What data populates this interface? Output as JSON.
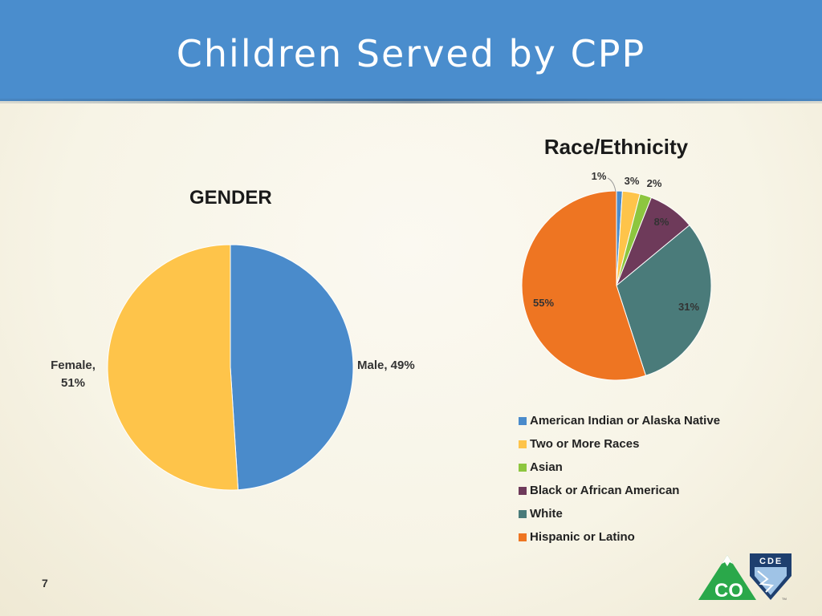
{
  "slide": {
    "title": "Children Served by CPP",
    "page_number": "7"
  },
  "logo": {
    "text_top": "CDE",
    "text_main": "CO",
    "tm": "TM",
    "colors": {
      "green": "#2aa84a",
      "navy": "#1e3f6f"
    }
  },
  "chart_data": [
    {
      "type": "pie",
      "title": "GENDER",
      "slices": [
        {
          "label": "Male",
          "value": 49,
          "display": "Male, 49%",
          "color": "#4a8bcb"
        },
        {
          "label": "Female",
          "value": 51,
          "display_line1": "Female,",
          "display_line2": "51%",
          "color": "#fec44a"
        }
      ],
      "start": "12 o'clock",
      "direction": "clockwise"
    },
    {
      "type": "pie",
      "title": "Race/Ethnicity",
      "slices": [
        {
          "label": "American Indian or Alaska Native",
          "value": 1,
          "display": "1%",
          "color": "#4a8bcb"
        },
        {
          "label": "Two or More Races",
          "value": 3,
          "display": "3%",
          "color": "#fec44a"
        },
        {
          "label": "Asian",
          "value": 2,
          "display": "2%",
          "color": "#8dc63f"
        },
        {
          "label": "Black or African American",
          "value": 8,
          "display": "8%",
          "color": "#6e3a5a"
        },
        {
          "label": "White",
          "value": 31,
          "display": "31%",
          "color": "#4a7b7a"
        },
        {
          "label": "Hispanic or Latino",
          "value": 55,
          "display": "55%",
          "color": "#ee7522"
        }
      ],
      "start": "12 o'clock",
      "direction": "clockwise",
      "legend_position": "bottom"
    }
  ]
}
